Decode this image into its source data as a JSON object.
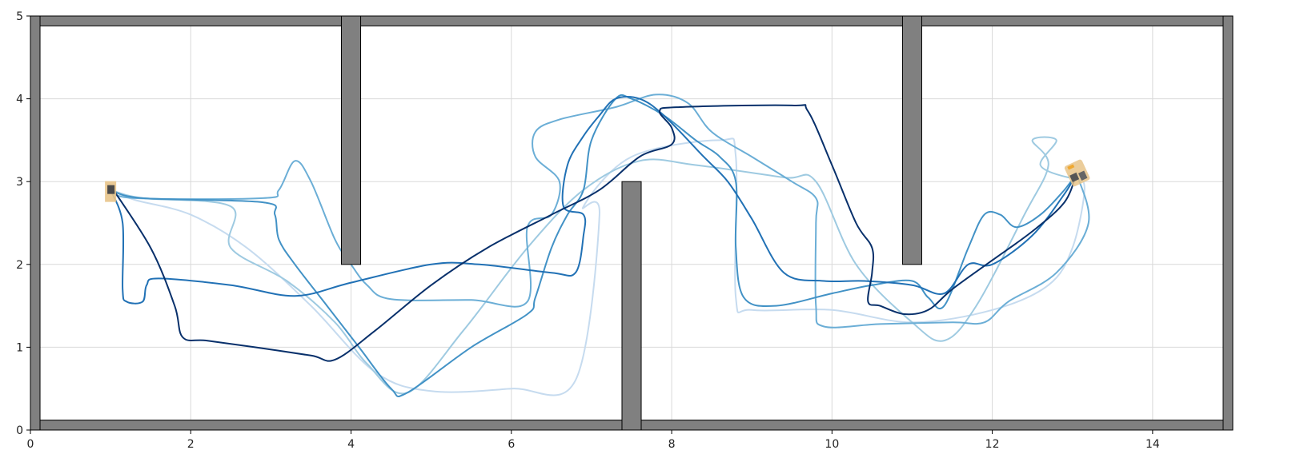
{
  "chart_data": {
    "type": "line",
    "title": "",
    "xlabel": "",
    "ylabel": "",
    "xlim": [
      0,
      15
    ],
    "ylim": [
      0,
      5
    ],
    "xticks": [
      0,
      2,
      4,
      6,
      8,
      10,
      12,
      14
    ],
    "yticks": [
      0,
      1,
      2,
      3,
      4,
      5
    ],
    "grid": true,
    "walls": [
      {
        "x0": 0.0,
        "x1": 15.0,
        "y0": 4.88,
        "y1": 5.0
      },
      {
        "x0": 0.0,
        "x1": 15.0,
        "y0": 0.0,
        "y1": 0.12
      },
      {
        "x0": 0.0,
        "x1": 0.12,
        "y0": 0.0,
        "y1": 5.0
      },
      {
        "x0": 14.88,
        "x1": 15.0,
        "y0": 0.0,
        "y1": 5.0
      },
      {
        "x0": 3.88,
        "x1": 4.12,
        "y0": 2.0,
        "y1": 5.0
      },
      {
        "x0": 10.88,
        "x1": 11.12,
        "y0": 2.0,
        "y1": 5.0
      },
      {
        "x0": 7.38,
        "x1": 7.62,
        "y0": 0.0,
        "y1": 3.0
      }
    ],
    "start": {
      "x": 1.0,
      "y": 2.88
    },
    "goal": {
      "x": 13.05,
      "y": 3.1
    },
    "series": [
      {
        "color": "#c6dbef",
        "points": [
          [
            1.0,
            2.9
          ],
          [
            1.3,
            2.78
          ],
          [
            2.0,
            2.6
          ],
          [
            2.7,
            2.2
          ],
          [
            3.5,
            1.5
          ],
          [
            4.3,
            0.7
          ],
          [
            5.0,
            0.47
          ],
          [
            6.0,
            0.5
          ],
          [
            6.8,
            0.6
          ],
          [
            7.1,
            2.6
          ],
          [
            6.9,
            2.7
          ],
          [
            7.5,
            3.3
          ],
          [
            8.6,
            3.5
          ],
          [
            8.8,
            3.3
          ],
          [
            8.8,
            1.6
          ],
          [
            9.0,
            1.45
          ],
          [
            10.0,
            1.45
          ],
          [
            11.0,
            1.3
          ],
          [
            12.0,
            1.45
          ],
          [
            12.7,
            1.75
          ],
          [
            13.0,
            2.2
          ],
          [
            13.15,
            2.9
          ],
          [
            13.05,
            3.1
          ]
        ]
      },
      {
        "color": "#9ecae1",
        "points": [
          [
            1.0,
            2.9
          ],
          [
            1.4,
            2.8
          ],
          [
            2.5,
            2.7
          ],
          [
            2.5,
            2.2
          ],
          [
            3.2,
            1.8
          ],
          [
            3.8,
            1.3
          ],
          [
            4.2,
            0.8
          ],
          [
            4.7,
            0.45
          ],
          [
            5.4,
            1.2
          ],
          [
            6.2,
            2.2
          ],
          [
            6.9,
            2.9
          ],
          [
            7.6,
            3.25
          ],
          [
            8.3,
            3.2
          ],
          [
            9.4,
            3.05
          ],
          [
            9.8,
            3.0
          ],
          [
            10.3,
            2.0
          ],
          [
            11.0,
            1.3
          ],
          [
            11.4,
            1.08
          ],
          [
            11.8,
            1.5
          ],
          [
            12.4,
            2.6
          ],
          [
            12.7,
            3.2
          ],
          [
            12.5,
            3.5
          ],
          [
            12.8,
            3.5
          ],
          [
            12.6,
            3.2
          ],
          [
            12.95,
            3.05
          ],
          [
            13.05,
            3.1
          ]
        ]
      },
      {
        "color": "#6baed6",
        "points": [
          [
            1.0,
            2.9
          ],
          [
            1.3,
            2.8
          ],
          [
            2.9,
            2.8
          ],
          [
            3.1,
            2.9
          ],
          [
            3.3,
            3.25
          ],
          [
            3.5,
            3.0
          ],
          [
            3.8,
            2.3
          ],
          [
            4.0,
            2.0
          ],
          [
            4.2,
            1.75
          ],
          [
            4.5,
            1.58
          ],
          [
            5.5,
            1.57
          ],
          [
            6.2,
            1.55
          ],
          [
            6.2,
            2.45
          ],
          [
            6.5,
            2.6
          ],
          [
            6.6,
            3.0
          ],
          [
            6.3,
            3.3
          ],
          [
            6.3,
            3.6
          ],
          [
            6.6,
            3.75
          ],
          [
            7.3,
            3.9
          ],
          [
            7.8,
            4.05
          ],
          [
            8.2,
            3.95
          ],
          [
            8.5,
            3.6
          ],
          [
            9.0,
            3.3
          ],
          [
            9.5,
            3.0
          ],
          [
            9.8,
            2.8
          ],
          [
            9.8,
            2.5
          ],
          [
            9.8,
            1.5
          ],
          [
            9.9,
            1.25
          ],
          [
            10.6,
            1.28
          ],
          [
            11.5,
            1.3
          ],
          [
            11.9,
            1.3
          ],
          [
            12.2,
            1.55
          ],
          [
            12.8,
            1.9
          ],
          [
            13.2,
            2.5
          ],
          [
            13.05,
            3.1
          ]
        ]
      },
      {
        "color": "#4292c6",
        "points": [
          [
            1.0,
            2.9
          ],
          [
            1.4,
            2.8
          ],
          [
            2.9,
            2.75
          ],
          [
            3.05,
            2.6
          ],
          [
            3.1,
            2.3
          ],
          [
            3.3,
            2.0
          ],
          [
            3.7,
            1.5
          ],
          [
            4.1,
            1.0
          ],
          [
            4.5,
            0.5
          ],
          [
            4.7,
            0.45
          ],
          [
            5.5,
            1.0
          ],
          [
            6.2,
            1.4
          ],
          [
            6.3,
            1.6
          ],
          [
            6.5,
            2.2
          ],
          [
            6.7,
            2.6
          ],
          [
            6.9,
            2.9
          ],
          [
            7.0,
            3.5
          ],
          [
            7.3,
            4.0
          ],
          [
            7.5,
            4.0
          ],
          [
            7.9,
            3.8
          ],
          [
            8.3,
            3.5
          ],
          [
            8.6,
            3.3
          ],
          [
            8.8,
            3.0
          ],
          [
            8.8,
            2.2
          ],
          [
            8.9,
            1.6
          ],
          [
            9.3,
            1.5
          ],
          [
            10.0,
            1.65
          ],
          [
            10.5,
            1.75
          ],
          [
            11.0,
            1.8
          ],
          [
            11.2,
            1.6
          ],
          [
            11.4,
            1.5
          ],
          [
            11.7,
            2.2
          ],
          [
            11.9,
            2.6
          ],
          [
            12.1,
            2.6
          ],
          [
            12.3,
            2.45
          ],
          [
            12.6,
            2.6
          ],
          [
            12.9,
            2.9
          ],
          [
            13.05,
            3.1
          ]
        ]
      },
      {
        "color": "#2171b5",
        "points": [
          [
            1.0,
            2.9
          ],
          [
            1.15,
            2.5
          ],
          [
            1.15,
            1.7
          ],
          [
            1.2,
            1.55
          ],
          [
            1.4,
            1.55
          ],
          [
            1.45,
            1.75
          ],
          [
            1.6,
            1.83
          ],
          [
            2.5,
            1.75
          ],
          [
            3.3,
            1.62
          ],
          [
            4.0,
            1.78
          ],
          [
            5.0,
            2.0
          ],
          [
            5.6,
            2.0
          ],
          [
            6.5,
            1.9
          ],
          [
            6.8,
            1.9
          ],
          [
            6.9,
            2.35
          ],
          [
            6.9,
            2.6
          ],
          [
            6.65,
            2.7
          ],
          [
            6.7,
            3.2
          ],
          [
            6.9,
            3.55
          ],
          [
            7.1,
            3.8
          ],
          [
            7.3,
            4.0
          ],
          [
            7.6,
            4.0
          ],
          [
            7.9,
            3.8
          ],
          [
            8.4,
            3.3
          ],
          [
            8.7,
            3.0
          ],
          [
            9.0,
            2.55
          ],
          [
            9.4,
            1.9
          ],
          [
            9.9,
            1.8
          ],
          [
            10.4,
            1.8
          ],
          [
            11.0,
            1.75
          ],
          [
            11.4,
            1.65
          ],
          [
            11.7,
            2.0
          ],
          [
            12.0,
            2.0
          ],
          [
            12.5,
            2.35
          ],
          [
            12.9,
            2.85
          ],
          [
            13.05,
            3.1
          ]
        ]
      },
      {
        "color": "#08306b",
        "points": [
          [
            1.0,
            2.95
          ],
          [
            1.5,
            2.2
          ],
          [
            1.8,
            1.5
          ],
          [
            1.9,
            1.12
          ],
          [
            2.2,
            1.08
          ],
          [
            2.8,
            1.0
          ],
          [
            3.5,
            0.9
          ],
          [
            3.8,
            0.85
          ],
          [
            4.3,
            1.2
          ],
          [
            5.0,
            1.75
          ],
          [
            5.7,
            2.2
          ],
          [
            6.5,
            2.6
          ],
          [
            7.1,
            2.9
          ],
          [
            7.6,
            3.3
          ],
          [
            8.0,
            3.45
          ],
          [
            8.0,
            3.65
          ],
          [
            7.85,
            3.85
          ],
          [
            8.1,
            3.9
          ],
          [
            9.5,
            3.92
          ],
          [
            9.7,
            3.85
          ],
          [
            10.0,
            3.2
          ],
          [
            10.3,
            2.5
          ],
          [
            10.5,
            2.2
          ],
          [
            10.5,
            1.9
          ],
          [
            10.45,
            1.55
          ],
          [
            10.6,
            1.5
          ],
          [
            10.9,
            1.4
          ],
          [
            11.2,
            1.45
          ],
          [
            11.5,
            1.7
          ],
          [
            12.0,
            2.05
          ],
          [
            12.5,
            2.4
          ],
          [
            12.9,
            2.75
          ],
          [
            13.05,
            3.1
          ]
        ]
      }
    ]
  }
}
